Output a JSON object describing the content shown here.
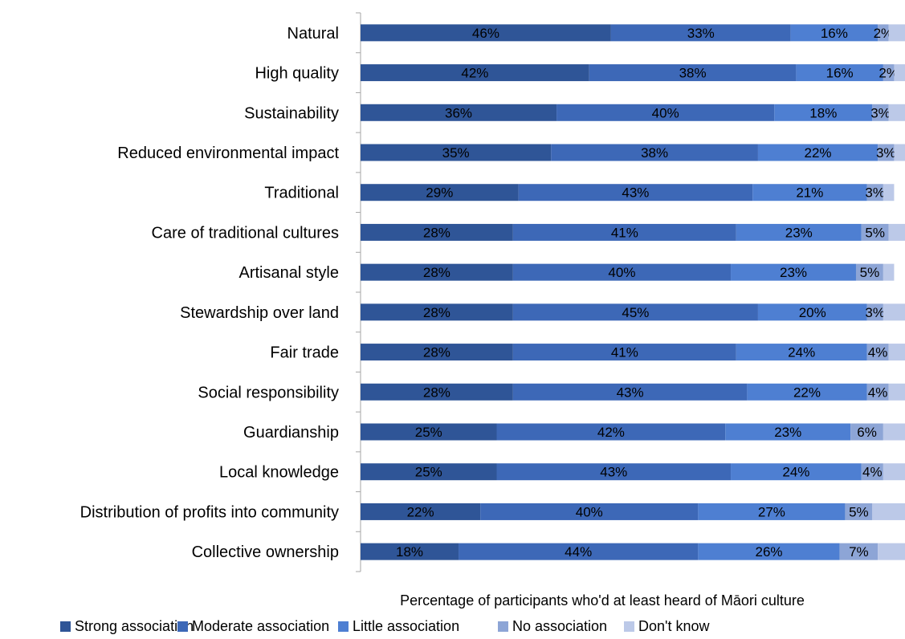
{
  "chart_data": {
    "type": "bar",
    "orientation": "horizontal",
    "stacked": true,
    "title": "",
    "xlabel": "Percentage of participants who'd at least heard of Māori culture",
    "ylabel": "",
    "xlim": [
      0,
      100
    ],
    "legend_position": "bottom",
    "grid": false,
    "categories": [
      "Natural",
      "High quality",
      "Sustainability",
      "Reduced environmental impact",
      "Traditional",
      "Care of traditional cultures",
      "Artisanal style",
      "Stewardship over land",
      "Fair trade",
      "Social responsibility",
      "Guardianship",
      "Local knowledge",
      "Distribution of profits into community",
      "Collective ownership"
    ],
    "series": [
      {
        "name": "Strong association",
        "color": "#2f5597",
        "values": [
          46,
          42,
          36,
          35,
          29,
          28,
          28,
          28,
          28,
          28,
          25,
          25,
          22,
          18
        ],
        "labels": [
          "46%",
          "42%",
          "36%",
          "35%",
          "29%",
          "28%",
          "28%",
          "28%",
          "28%",
          "28%",
          "25%",
          "25%",
          "22%",
          "18%"
        ]
      },
      {
        "name": "Moderate association",
        "color": "#3d68b7",
        "values": [
          33,
          38,
          40,
          38,
          43,
          41,
          40,
          45,
          41,
          43,
          42,
          43,
          40,
          44
        ],
        "labels": [
          "33%",
          "38%",
          "40%",
          "38%",
          "43%",
          "41%",
          "40%",
          "45%",
          "41%",
          "43%",
          "42%",
          "43%",
          "40%",
          "44%"
        ]
      },
      {
        "name": "Little association",
        "color": "#4e7fd2",
        "values": [
          16,
          16,
          18,
          22,
          21,
          23,
          23,
          20,
          24,
          22,
          23,
          24,
          27,
          26
        ],
        "labels": [
          "16%",
          "16%",
          "18%",
          "22%",
          "21%",
          "23%",
          "23%",
          "20%",
          "24%",
          "22%",
          "23%",
          "24%",
          "27%",
          "26%"
        ]
      },
      {
        "name": "No association",
        "color": "#8da5d6",
        "values": [
          2,
          2,
          3,
          3,
          3,
          5,
          5,
          3,
          4,
          4,
          6,
          4,
          5,
          7
        ],
        "labels": [
          "2%",
          "2%",
          "3%",
          "3%",
          "3%",
          "5%",
          "5%",
          "3%",
          "4%",
          "4%",
          "6%",
          "4%",
          "5%",
          "7%"
        ]
      },
      {
        "name": "Don't know",
        "color": "#bcc9e8",
        "values": [
          3,
          2,
          3,
          2,
          2,
          3,
          2,
          4,
          3,
          3,
          4,
          4,
          6,
          5
        ],
        "labels": null
      }
    ]
  }
}
